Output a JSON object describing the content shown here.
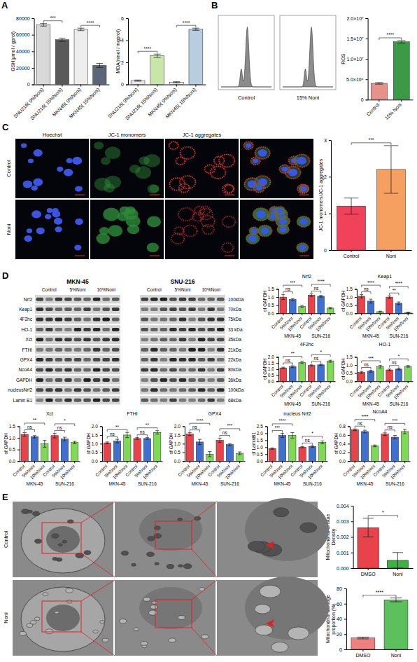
{
  "figure": {
    "panel_labels": [
      "A",
      "B",
      "C",
      "D",
      "E"
    ],
    "flow": {
      "labels": [
        "Control",
        "15% Noni"
      ]
    },
    "microscopy": {
      "columns": [
        "Hoechst",
        "JC-1 monomers",
        "JC-1 aggregates"
      ],
      "rows": [
        "Control",
        "Noni"
      ]
    },
    "blot": {
      "cell_lines": [
        "MKN-45",
        "SNU-216"
      ],
      "lanes": [
        "Control",
        "5%Noni",
        "10%Noni"
      ],
      "proteins": [
        "Nrf2",
        "Keap1",
        "4F2hc",
        "HO-1",
        "Xct",
        "FTHI",
        "GPX4",
        "NcoA4",
        "GAPDH",
        "nucleusNrf2",
        "Lamin B1"
      ],
      "sizes": [
        "100kDa",
        "70kDa",
        "75kDa",
        "33 kDa",
        "35kDa",
        "21kDa",
        "22kDa",
        "80kDa",
        "36kDa",
        "100kDa",
        "68kDa"
      ]
    },
    "tem": {
      "rows": [
        "Control",
        "Noni"
      ]
    }
  },
  "chart_data": [
    {
      "type": "bar",
      "y_label": "GSH(μmol / gprot)",
      "categories": [
        "SNU216( 0%Noni)",
        "SNU216( 15%Noni)",
        "MKN45( 0%Noni)",
        "MKN45( 15%Noni)"
      ],
      "values": [
        72000,
        54000,
        66500,
        23000
      ],
      "errors": [
        1500,
        2000,
        1500,
        2500
      ],
      "colors": [
        "#d9d9d9",
        "#595959",
        "#ededed",
        "#5b6678"
      ],
      "ylim": [
        0,
        80000
      ],
      "yticks": [
        0,
        20000,
        40000,
        60000,
        80000
      ],
      "significance": [
        {
          "between": [
            0,
            1
          ],
          "label": "***"
        },
        {
          "between": [
            2,
            3
          ],
          "label": "****"
        }
      ]
    },
    {
      "type": "bar",
      "y_label": "MDA(nmol / mgprot)",
      "categories": [
        "SNU216( 0%Noni)",
        "SNU216( 15%Noni)",
        "MKN45( 0%Noni)",
        "MKN45( 15%Noni)"
      ],
      "values": [
        0.35,
        2.6,
        0.2,
        5.0
      ],
      "errors": [
        0.05,
        0.15,
        0.05,
        0.1
      ],
      "colors": [
        "#e6e6e6",
        "#c8e6a8",
        "#ededed",
        "#b8cde0"
      ],
      "ylim": [
        0,
        6
      ],
      "yticks": [
        0,
        2,
        4,
        6
      ],
      "significance": [
        {
          "between": [
            0,
            1
          ],
          "label": "****"
        },
        {
          "between": [
            2,
            3
          ],
          "label": "****"
        }
      ]
    },
    {
      "type": "bar",
      "y_label": "ROS",
      "categories": [
        "Control",
        "15% Noni"
      ],
      "values": [
        4000000,
        14200000
      ],
      "errors": [
        200000,
        300000
      ],
      "colors": [
        "#e8908a",
        "#3c9a46"
      ],
      "ylim": [
        0,
        20000000
      ],
      "yticks": [
        0,
        {
          "value": 5000000,
          "label": "5.0×10⁶"
        },
        {
          "value": 10000000,
          "label": "1.0×10⁷"
        },
        {
          "value": 15000000,
          "label": "1.5×10⁷"
        },
        {
          "value": 20000000,
          "label": "2.0×10⁷"
        }
      ],
      "significance": [
        {
          "between": [
            0,
            1
          ],
          "label": "****"
        }
      ]
    },
    {
      "type": "bar",
      "y_label": "JC-1 monomers/JC-1 aggregates",
      "categories": [
        "Control",
        "Noni"
      ],
      "values": [
        1.2,
        2.2
      ],
      "errors": [
        0.22,
        0.65
      ],
      "colors": [
        "#f0435a",
        "#f5a060"
      ],
      "ylim": [
        0,
        3
      ],
      "yticks": [
        0,
        1,
        2,
        3
      ],
      "significance": [
        {
          "between": [
            0,
            1
          ],
          "label": "***"
        }
      ]
    },
    {
      "type": "bar",
      "title": "Nrf2",
      "y_label": "of GAPDH",
      "categories": [
        "Control",
        "5%Noni",
        "10%Noni",
        "Control",
        "5%Noni",
        "10%Noni"
      ],
      "group_labels": [
        "MKN-45",
        "SUN-216"
      ],
      "values": [
        1.0,
        0.85,
        0.42,
        1.12,
        1.05,
        0.32
      ],
      "errors": [
        0.15,
        0.05,
        0.06,
        0.08,
        0.05,
        0.04
      ],
      "colors": [
        "#e8434a",
        "#3f6fd0",
        "#7ed957",
        "#e8434a",
        "#3f6fd0",
        "#7ed957"
      ],
      "ylim": [
        0,
        1.5
      ],
      "yticks": [
        {
          "value": 0,
          "label": "0.0"
        },
        0.5,
        {
          "value": 1,
          "label": "1.0"
        },
        1.5
      ],
      "significance": [
        {
          "between": [
            0,
            1
          ],
          "label": "ns"
        },
        {
          "between": [
            0,
            2
          ],
          "label": "***"
        },
        {
          "between": [
            3,
            4
          ],
          "label": "ns"
        },
        {
          "between": [
            3,
            5
          ],
          "label": "****"
        }
      ]
    },
    {
      "type": "bar",
      "title": "Keap1",
      "y_label": "of GAPDH",
      "categories": [
        "Control",
        "5%Noni",
        "10%Noni",
        "Control",
        "5%Noni",
        "10%Noni"
      ],
      "group_labels": [
        "MKN-45",
        "SUN-216"
      ],
      "values": [
        1.05,
        0.75,
        0.1,
        1.0,
        0.62,
        0.05
      ],
      "errors": [
        0.1,
        0.12,
        0.03,
        0.08,
        0.08,
        0.02
      ],
      "colors": [
        "#e8434a",
        "#3f6fd0",
        "#7ed957",
        "#e8434a",
        "#3f6fd0",
        "#7ed957"
      ],
      "ylim": [
        0,
        1.5
      ],
      "yticks": [
        {
          "value": 0,
          "label": "0.0"
        },
        0.5,
        {
          "value": 1,
          "label": "1.0"
        },
        1.5
      ],
      "significance": [
        {
          "between": [
            0,
            1
          ],
          "label": "ns"
        },
        {
          "between": [
            0,
            2
          ],
          "label": "****"
        },
        {
          "between": [
            3,
            4
          ],
          "label": "**"
        },
        {
          "between": [
            3,
            5
          ],
          "label": "****"
        }
      ]
    },
    {
      "type": "bar",
      "title": "4F2hc",
      "y_label": "of GAPDH",
      "categories": [
        "Control",
        "5%Noni",
        "10%Noni",
        "Control",
        "5%Noni",
        "10%Noni"
      ],
      "group_labels": [
        "MKN-45",
        "SUN-216"
      ],
      "values": [
        1.1,
        1.2,
        1.55,
        1.3,
        1.35,
        1.65
      ],
      "errors": [
        0.06,
        0.08,
        0.1,
        0.05,
        0.05,
        0.08
      ],
      "colors": [
        "#e8434a",
        "#3f6fd0",
        "#7ed957",
        "#e8434a",
        "#3f6fd0",
        "#7ed957"
      ],
      "ylim": [
        0,
        2
      ],
      "yticks": [
        {
          "value": 0,
          "label": "0.0"
        },
        0.5,
        {
          "value": 1,
          "label": "1.0"
        },
        1.5,
        {
          "value": 2,
          "label": "2.0"
        }
      ],
      "significance": [
        {
          "between": [
            0,
            1
          ],
          "label": "ns"
        },
        {
          "between": [
            0,
            2
          ],
          "label": "**"
        },
        {
          "between": [
            3,
            4
          ],
          "label": "ns"
        },
        {
          "between": [
            3,
            5
          ],
          "label": "*"
        }
      ]
    },
    {
      "type": "bar",
      "title": "HO-1",
      "y_label": "of GAPDH",
      "categories": [
        "Control",
        "5%Noni",
        "10%Noni",
        "Control",
        "5%Noni",
        "10%Noni"
      ],
      "group_labels": [
        "MKN-45",
        "SUN-216"
      ],
      "values": [
        0.55,
        0.62,
        0.9,
        0.7,
        0.75,
        0.92
      ],
      "errors": [
        0.06,
        0.06,
        0.08,
        0.05,
        0.05,
        0.05
      ],
      "colors": [
        "#e8434a",
        "#3f6fd0",
        "#7ed957",
        "#e8434a",
        "#3f6fd0",
        "#7ed957"
      ],
      "ylim": [
        0,
        1.5
      ],
      "yticks": [
        {
          "value": 0,
          "label": "0.0"
        },
        0.5,
        {
          "value": 1,
          "label": "1.0"
        },
        1.5
      ],
      "significance": [
        {
          "between": [
            0,
            1
          ],
          "label": "ns"
        },
        {
          "between": [
            0,
            2
          ],
          "label": "***"
        },
        {
          "between": [
            3,
            4
          ],
          "label": "ns"
        },
        {
          "between": [
            3,
            5
          ],
          "label": "*"
        }
      ]
    },
    {
      "type": "bar",
      "title": "Xct",
      "y_label": "of GAPDH",
      "categories": [
        "Control",
        "5%Noni",
        "10%Noni",
        "Control",
        "5%Noni",
        "10%Noni"
      ],
      "group_labels": [
        "MKN-45",
        "SUN-216"
      ],
      "values": [
        1.15,
        1.05,
        0.75,
        1.1,
        0.95,
        0.8
      ],
      "errors": [
        0.08,
        0.05,
        0.15,
        0.1,
        0.08,
        0.05
      ],
      "colors": [
        "#e8434a",
        "#3f6fd0",
        "#7ed957",
        "#e8434a",
        "#3f6fd0",
        "#7ed957"
      ],
      "ylim": [
        0,
        1.5
      ],
      "yticks": [
        {
          "value": 0,
          "label": "0.0"
        },
        0.5,
        {
          "value": 1,
          "label": "1.0"
        },
        1.5
      ],
      "significance": [
        {
          "between": [
            0,
            1
          ],
          "label": "ns"
        },
        {
          "between": [
            0,
            2
          ],
          "label": "**"
        },
        {
          "between": [
            3,
            4
          ],
          "label": "ns"
        },
        {
          "between": [
            3,
            5
          ],
          "label": "*"
        }
      ]
    },
    {
      "type": "bar",
      "title": "FTHI",
      "y_label": "of GAPDH",
      "categories": [
        "Control",
        "5%Noni",
        "10%Noni",
        "Control",
        "5%Noni",
        "10%Noni"
      ],
      "group_labels": [
        "MKN-45",
        "SUN-216"
      ],
      "values": [
        1.05,
        1.15,
        1.5,
        1.3,
        1.3,
        1.65
      ],
      "errors": [
        0.05,
        0.1,
        0.15,
        0.05,
        0.05,
        0.1
      ],
      "colors": [
        "#e8434a",
        "#3f6fd0",
        "#7ed957",
        "#e8434a",
        "#3f6fd0",
        "#7ed957"
      ],
      "ylim": [
        0,
        2
      ],
      "yticks": [
        {
          "value": 0,
          "label": "0.0"
        },
        0.5,
        {
          "value": 1,
          "label": "1.0"
        },
        1.5,
        {
          "value": 2,
          "label": "2.0"
        }
      ],
      "significance": [
        {
          "between": [
            0,
            1
          ],
          "label": "ns"
        },
        {
          "between": [
            0,
            2
          ],
          "label": "**"
        },
        {
          "between": [
            3,
            4
          ],
          "label": "ns"
        },
        {
          "between": [
            3,
            5
          ],
          "label": "**"
        }
      ]
    },
    {
      "type": "bar",
      "title": "GPX4",
      "y_label": "of GAPDH",
      "categories": [
        "Control",
        "5%Noni",
        "10%Noni",
        "Control",
        "5%Noni",
        "10%Noni"
      ],
      "group_labels": [
        "MKN-45",
        "SUN-216"
      ],
      "values": [
        1.55,
        1.1,
        0.4,
        1.2,
        0.95,
        0.45
      ],
      "errors": [
        0.08,
        0.15,
        0.15,
        0.12,
        0.06,
        0.08
      ],
      "colors": [
        "#e8434a",
        "#3f6fd0",
        "#7ed957",
        "#e8434a",
        "#3f6fd0",
        "#7ed957"
      ],
      "ylim": [
        0,
        2
      ],
      "yticks": [
        {
          "value": 0,
          "label": "0.0"
        },
        0.5,
        {
          "value": 1,
          "label": "1.0"
        },
        1.5,
        {
          "value": 2,
          "label": "2.0"
        }
      ],
      "significance": [
        {
          "between": [
            0,
            1
          ],
          "label": "ns"
        },
        {
          "between": [
            0,
            2
          ],
          "label": "****"
        },
        {
          "between": [
            3,
            4
          ],
          "label": "ns"
        },
        {
          "between": [
            3,
            5
          ],
          "label": "***"
        }
      ]
    },
    {
      "type": "bar",
      "title": "nucleus Nrf2",
      "y_label": "of LaminB1",
      "categories": [
        "Control",
        "5%Noni",
        "10%Noni",
        "Control",
        "5%Noni",
        "10%Noni"
      ],
      "group_labels": [
        "MKN-45",
        "SUN-216"
      ],
      "values": [
        0.9,
        1.85,
        1.85,
        1.0,
        1.05,
        1.35
      ],
      "errors": [
        0.05,
        0.15,
        0.2,
        0.05,
        0.05,
        0.1
      ],
      "colors": [
        "#e8434a",
        "#3f6fd0",
        "#7ed957",
        "#e8434a",
        "#3f6fd0",
        "#7ed957"
      ],
      "ylim": [
        0,
        2.5
      ],
      "yticks": [
        {
          "value": 0,
          "label": "0.0"
        },
        0.5,
        {
          "value": 1,
          "label": "1.0"
        },
        1.5,
        {
          "value": 2,
          "label": "2.0"
        },
        2.5
      ],
      "significance": [
        {
          "between": [
            0,
            1
          ],
          "label": "***"
        },
        {
          "between": [
            0,
            2
          ],
          "label": "****"
        },
        {
          "between": [
            3,
            4
          ],
          "label": "ns"
        },
        {
          "between": [
            3,
            5
          ],
          "label": "*"
        }
      ]
    },
    {
      "type": "bar",
      "title": "NcoA4",
      "y_label": "of GAPDH",
      "categories": [
        "Control",
        "5%Noni",
        "10%Noni",
        "Control",
        "5%Noni",
        "10%Noni"
      ],
      "group_labels": [
        "MKN-45",
        "SUN-216"
      ],
      "values": [
        0.72,
        0.68,
        0.35,
        0.62,
        0.55,
        0.68
      ],
      "errors": [
        0.02,
        0.03,
        0.02,
        0.03,
        0.04,
        0.05
      ],
      "colors": [
        "#e8434a",
        "#3f6fd0",
        "#7ed957",
        "#e8434a",
        "#3f6fd0",
        "#7ed957"
      ],
      "ylim": [
        0,
        0.8
      ],
      "yticks": [
        {
          "value": 0,
          "label": "0.0"
        },
        0.2,
        0.4,
        0.6,
        0.8
      ],
      "significance": [
        {
          "between": [
            0,
            1
          ],
          "label": "ns"
        },
        {
          "between": [
            0,
            2
          ],
          "label": "****"
        },
        {
          "between": [
            3,
            4
          ],
          "label": "ns"
        },
        {
          "between": [
            3,
            5
          ],
          "label": "***"
        }
      ]
    },
    {
      "type": "bar",
      "y_label": "Mitochondrial Cristae Density",
      "categories": [
        "DMSO",
        "Noni"
      ],
      "values": [
        0.0026,
        0.0005
      ],
      "errors": [
        0.0006,
        0.0005
      ],
      "colors": [
        "#e8434a",
        "#3cb043"
      ],
      "ylim": [
        0,
        0.004
      ],
      "yticks": [
        {
          "value": 0,
          "label": "0.000"
        },
        0.001,
        0.002,
        0.003,
        0.004
      ],
      "significance": [
        {
          "between": [
            0,
            1
          ],
          "label": "*"
        }
      ]
    },
    {
      "type": "bar",
      "y_label": "Mitochondrial damage proportion (%)",
      "categories": [
        "DMSO",
        "Noni"
      ],
      "values": [
        15,
        65
      ],
      "errors": [
        1.2,
        2.5
      ],
      "colors": [
        "#f08080",
        "#5cc05c"
      ],
      "ylim": [
        0,
        80
      ],
      "yticks": [
        0,
        20,
        40,
        60,
        80
      ],
      "significance": [
        {
          "between": [
            0,
            1
          ],
          "label": "****"
        }
      ]
    }
  ]
}
